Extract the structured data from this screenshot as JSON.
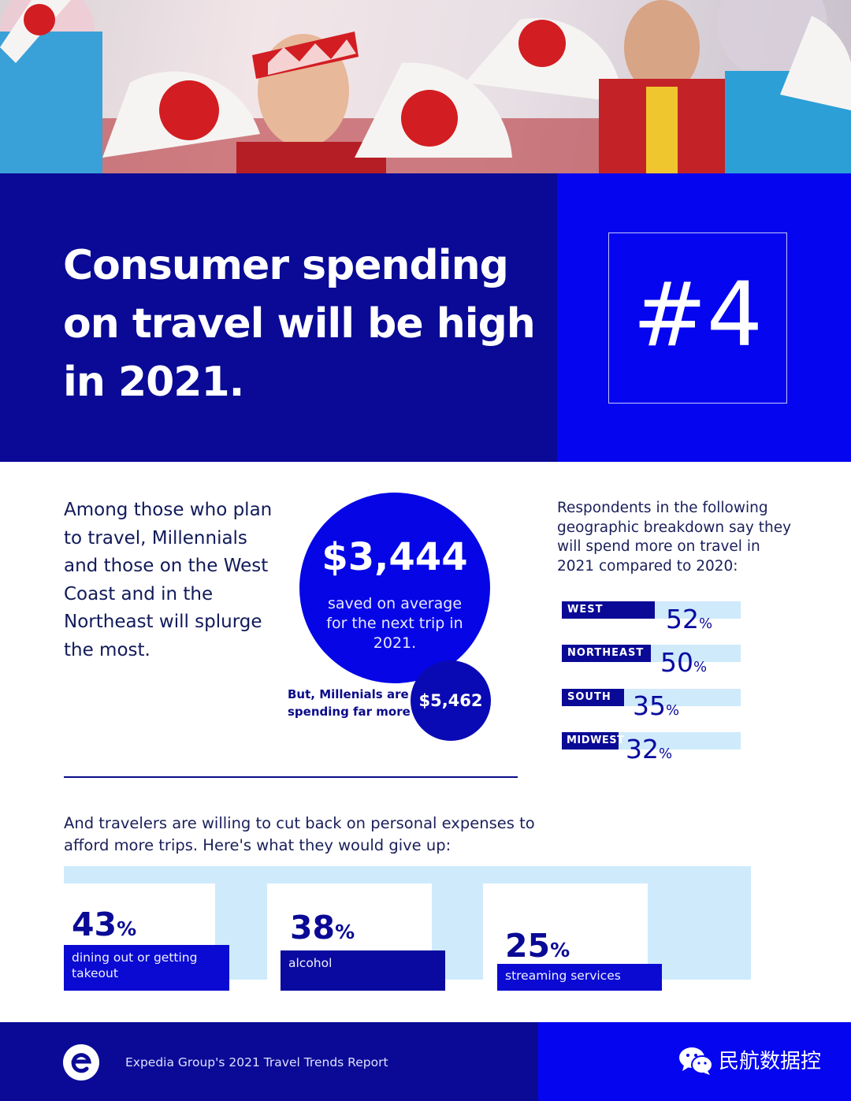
{
  "hero": {
    "alt": ""
  },
  "header": {
    "title": "Consumer spending on travel will be high in 2021.",
    "number": "#4"
  },
  "intro": {
    "text": "Among those who plan to travel, Millennials and those on the West Coast and in the Northeast will splurge the most."
  },
  "savings": {
    "amount": "$3,444",
    "caption": "saved on average for the next trip in 2021.",
    "millennials_note": "But, Millenials are spending far more",
    "millennials_amount": "$5,462"
  },
  "regions": {
    "intro": "Respondents in the following geographic breakdown say they will spend more on travel in 2021 compared to 2020:",
    "items": [
      {
        "label": "WEST",
        "value": "52",
        "unit": "%"
      },
      {
        "label": "NORTHEAST",
        "value": "50",
        "unit": "%"
      },
      {
        "label": "SOUTH",
        "value": "35",
        "unit": "%"
      },
      {
        "label": "MIDWEST",
        "value": "32",
        "unit": "%"
      }
    ]
  },
  "cutback": {
    "text": "And travelers are willing to cut back on personal expenses to afford more trips. Here's what they would give up:",
    "items": [
      {
        "value": "43",
        "unit": "%",
        "label": "dining out or getting takeout"
      },
      {
        "value": "38",
        "unit": "%",
        "label": "alcohol"
      },
      {
        "value": "25",
        "unit": "%",
        "label": "streaming services"
      }
    ]
  },
  "footer": {
    "report": "Expedia Group's 2021 Travel Trends Report",
    "watermark": "民航数据控",
    "logo_icon": "expedia-e-logo",
    "wechat_icon": "wechat-icon"
  },
  "colors": {
    "navy": "#0a0a96",
    "blue": "#0505f0",
    "light": "#cfeafb"
  }
}
